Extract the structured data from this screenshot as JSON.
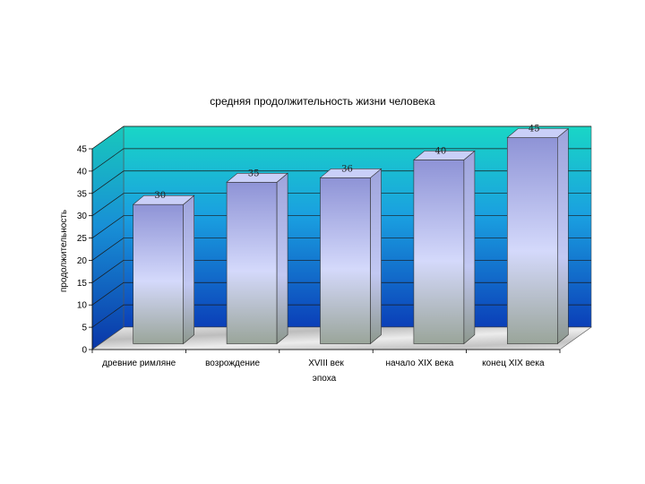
{
  "chart_data": {
    "type": "bar",
    "title": "средняя продолжительность жизни человека",
    "xlabel": "эпоха",
    "ylabel": "продолжительность",
    "categories": [
      "древние римляне",
      "возрождение",
      "XVIII век",
      "начало XIX века",
      "конец XIX века"
    ],
    "values": [
      30,
      35,
      36,
      40,
      45
    ],
    "data_labels": [
      "30",
      "35",
      "36",
      "40",
      "45"
    ],
    "ylim": [
      0,
      45
    ],
    "yticks": [
      0,
      5,
      10,
      15,
      20,
      25,
      30,
      35,
      40,
      45
    ],
    "ytick_labels": [
      "0",
      "5",
      "10",
      "15",
      "20",
      "25",
      "30",
      "35",
      "40",
      "45"
    ],
    "grid": true,
    "legend": "none",
    "style": "3d-columns",
    "colors": {
      "wall_top": "#19d6c6",
      "wall_mid": "#1a9fe0",
      "wall_bottom": "#0b3fb8",
      "bar_top_face": "#c9cff8",
      "bar_front_top": "#8e93d6",
      "bar_front_mid": "#d4d9fb",
      "bar_front_bottom": "#9aa59a",
      "floor": "#d6d6d6"
    }
  }
}
